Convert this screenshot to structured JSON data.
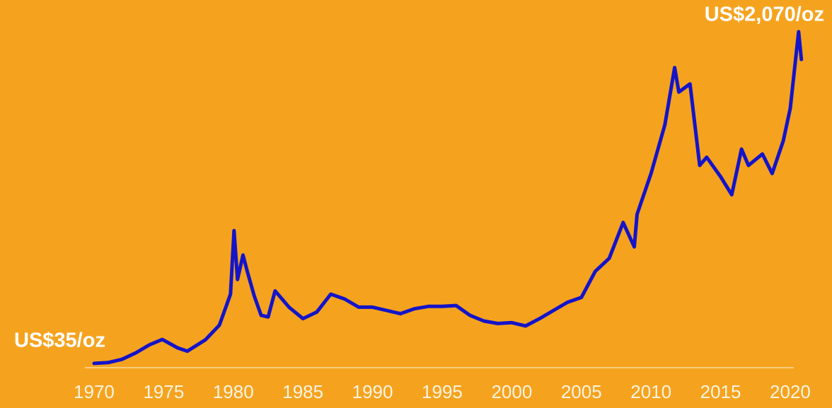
{
  "chart_data": {
    "type": "line",
    "annotations": [
      {
        "text": "US$35/oz",
        "x": 1970,
        "value": 35
      },
      {
        "text": "US$2,070/oz",
        "x": 2020.6,
        "value": 2070
      }
    ],
    "x": [
      1970,
      1971,
      1972,
      1973,
      1974,
      1974.9,
      1976,
      1976.7,
      1978,
      1979,
      1979.8,
      1980.05,
      1980.3,
      1980.7,
      1981,
      1981.5,
      1982,
      1982.5,
      1983,
      1984,
      1985,
      1986,
      1987,
      1988,
      1989,
      1990,
      1991,
      1992,
      1993,
      1994,
      1995,
      1996,
      1997,
      1998,
      1999,
      2000,
      2001,
      2002,
      2003,
      2004,
      2005,
      2006,
      2007,
      2008,
      2008.8,
      2009,
      2010,
      2011,
      2011.7,
      2012,
      2012.8,
      2013.5,
      2014,
      2015,
      2015.8,
      2016.5,
      2017,
      2018,
      2018.7,
      2019.5,
      2020,
      2020.6,
      2020.8
    ],
    "values": [
      35,
      40,
      60,
      100,
      150,
      182,
      130,
      110,
      180,
      270,
      460,
      850,
      550,
      700,
      600,
      450,
      330,
      320,
      480,
      380,
      310,
      350,
      460,
      430,
      380,
      380,
      360,
      340,
      370,
      385,
      385,
      390,
      330,
      295,
      280,
      285,
      265,
      310,
      360,
      410,
      440,
      600,
      680,
      900,
      750,
      950,
      1200,
      1500,
      1850,
      1700,
      1750,
      1250,
      1300,
      1180,
      1070,
      1350,
      1250,
      1320,
      1200,
      1400,
      1600,
      2070,
      1900
    ],
    "color": "#1414c8",
    "xlim": [
      1969.3,
      2020.8
    ],
    "ylim": [
      0,
      2100
    ],
    "xticks": [
      1970,
      1975,
      1980,
      1985,
      1990,
      1995,
      2000,
      2005,
      2010,
      2015,
      2020
    ]
  }
}
